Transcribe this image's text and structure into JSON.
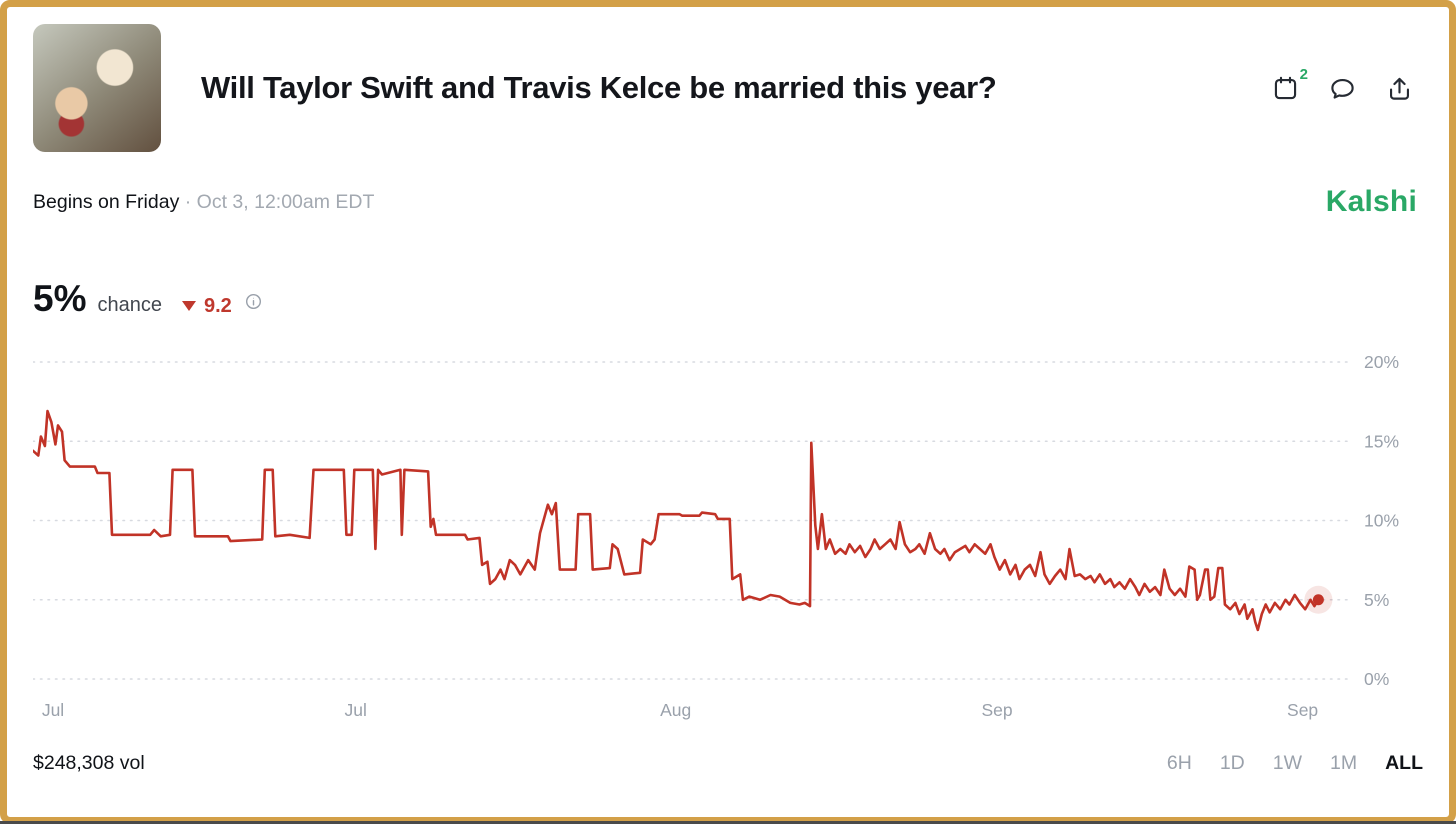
{
  "header": {
    "title": "Will Taylor Swift and Travis Kelce be married this year?",
    "calendar_badge": "2"
  },
  "subheader": {
    "begins_label": "Begins on Friday",
    "separator": "·",
    "start_time": "Oct 3, 12:00am EDT",
    "brand": "Kalshi"
  },
  "price": {
    "chance_value": "5%",
    "chance_label": "chance",
    "change_direction": "down",
    "change_value": "9.2"
  },
  "footer": {
    "volume": "$248,308 vol",
    "ranges": [
      {
        "label": "6H",
        "active": false
      },
      {
        "label": "1D",
        "active": false
      },
      {
        "label": "1W",
        "active": false
      },
      {
        "label": "1M",
        "active": false
      },
      {
        "label": "ALL",
        "active": true
      }
    ]
  },
  "colors": {
    "brand_green": "#2aa866",
    "line_red": "#c13327",
    "border_gold": "#d3a048",
    "tick_gray": "#9aa1ab",
    "grid_gray": "#d7dae0"
  },
  "chart_data": {
    "type": "line",
    "series_name": "chance",
    "color": "#c13327",
    "grid": "dotted-horizontal",
    "legend": "none",
    "ylim": [
      0,
      21
    ],
    "yticks": [
      0,
      5,
      10,
      15,
      20
    ],
    "ytick_labels": [
      "0%",
      "5%",
      "10%",
      "15%",
      "20%"
    ],
    "x_labels": [
      {
        "label": "Jul",
        "pos": 0.012
      },
      {
        "label": "Jul",
        "pos": 0.245
      },
      {
        "label": "Aug",
        "pos": 0.488
      },
      {
        "label": "Sep",
        "pos": 0.732
      },
      {
        "label": "Sep",
        "pos": 0.964
      }
    ],
    "end_marker": true,
    "points": [
      [
        0.0,
        14.4
      ],
      [
        0.004,
        14.1
      ],
      [
        0.006,
        15.3
      ],
      [
        0.009,
        14.7
      ],
      [
        0.011,
        16.9
      ],
      [
        0.014,
        16.2
      ],
      [
        0.017,
        14.8
      ],
      [
        0.019,
        16.0
      ],
      [
        0.022,
        15.6
      ],
      [
        0.024,
        13.8
      ],
      [
        0.028,
        13.4
      ],
      [
        0.047,
        13.4
      ],
      [
        0.049,
        13.0
      ],
      [
        0.058,
        13.0
      ],
      [
        0.06,
        9.1
      ],
      [
        0.089,
        9.1
      ],
      [
        0.092,
        9.4
      ],
      [
        0.097,
        9.0
      ],
      [
        0.104,
        9.1
      ],
      [
        0.106,
        13.2
      ],
      [
        0.121,
        13.2
      ],
      [
        0.123,
        9.0
      ],
      [
        0.148,
        9.0
      ],
      [
        0.15,
        8.7
      ],
      [
        0.174,
        8.8
      ],
      [
        0.176,
        13.2
      ],
      [
        0.182,
        13.2
      ],
      [
        0.184,
        9.0
      ],
      [
        0.195,
        9.1
      ],
      [
        0.21,
        8.9
      ],
      [
        0.213,
        13.2
      ],
      [
        0.236,
        13.2
      ],
      [
        0.238,
        9.1
      ],
      [
        0.242,
        9.1
      ],
      [
        0.244,
        13.2
      ],
      [
        0.258,
        13.2
      ],
      [
        0.26,
        8.2
      ],
      [
        0.262,
        13.2
      ],
      [
        0.265,
        12.9
      ],
      [
        0.279,
        13.2
      ],
      [
        0.28,
        9.1
      ],
      [
        0.282,
        13.2
      ],
      [
        0.3,
        13.1
      ],
      [
        0.302,
        9.6
      ],
      [
        0.304,
        10.1
      ],
      [
        0.306,
        9.1
      ],
      [
        0.328,
        9.1
      ],
      [
        0.33,
        8.8
      ],
      [
        0.339,
        8.9
      ],
      [
        0.341,
        7.2
      ],
      [
        0.345,
        7.4
      ],
      [
        0.347,
        6.0
      ],
      [
        0.351,
        6.3
      ],
      [
        0.355,
        6.9
      ],
      [
        0.358,
        6.3
      ],
      [
        0.362,
        7.5
      ],
      [
        0.366,
        7.2
      ],
      [
        0.37,
        6.6
      ],
      [
        0.376,
        7.5
      ],
      [
        0.381,
        6.9
      ],
      [
        0.385,
        9.2
      ],
      [
        0.391,
        11.0
      ],
      [
        0.394,
        10.4
      ],
      [
        0.397,
        11.1
      ],
      [
        0.4,
        6.9
      ],
      [
        0.412,
        6.9
      ],
      [
        0.414,
        10.4
      ],
      [
        0.423,
        10.4
      ],
      [
        0.425,
        6.9
      ],
      [
        0.438,
        7.0
      ],
      [
        0.44,
        8.5
      ],
      [
        0.444,
        8.2
      ],
      [
        0.449,
        6.6
      ],
      [
        0.461,
        6.7
      ],
      [
        0.463,
        8.8
      ],
      [
        0.469,
        8.5
      ],
      [
        0.472,
        8.8
      ],
      [
        0.475,
        10.4
      ],
      [
        0.491,
        10.4
      ],
      [
        0.493,
        10.3
      ],
      [
        0.506,
        10.3
      ],
      [
        0.508,
        10.5
      ],
      [
        0.518,
        10.4
      ],
      [
        0.52,
        10.1
      ],
      [
        0.529,
        10.1
      ],
      [
        0.531,
        6.3
      ],
      [
        0.537,
        6.6
      ],
      [
        0.539,
        5.0
      ],
      [
        0.544,
        5.2
      ],
      [
        0.552,
        5.0
      ],
      [
        0.56,
        5.3
      ],
      [
        0.567,
        5.2
      ],
      [
        0.575,
        4.8
      ],
      [
        0.582,
        4.7
      ],
      [
        0.586,
        4.8
      ],
      [
        0.59,
        4.6
      ],
      [
        0.591,
        14.9
      ],
      [
        0.594,
        9.7
      ],
      [
        0.596,
        8.2
      ],
      [
        0.599,
        10.4
      ],
      [
        0.602,
        8.2
      ],
      [
        0.605,
        8.8
      ],
      [
        0.609,
        7.9
      ],
      [
        0.613,
        8.2
      ],
      [
        0.617,
        7.9
      ],
      [
        0.62,
        8.5
      ],
      [
        0.624,
        8.0
      ],
      [
        0.628,
        8.4
      ],
      [
        0.632,
        7.7
      ],
      [
        0.636,
        8.2
      ],
      [
        0.639,
        8.8
      ],
      [
        0.643,
        8.2
      ],
      [
        0.647,
        8.5
      ],
      [
        0.651,
        8.8
      ],
      [
        0.655,
        8.2
      ],
      [
        0.658,
        9.9
      ],
      [
        0.662,
        8.5
      ],
      [
        0.666,
        8.0
      ],
      [
        0.67,
        8.2
      ],
      [
        0.673,
        8.5
      ],
      [
        0.677,
        7.9
      ],
      [
        0.681,
        9.2
      ],
      [
        0.685,
        8.2
      ],
      [
        0.689,
        7.9
      ],
      [
        0.692,
        8.2
      ],
      [
        0.696,
        7.5
      ],
      [
        0.7,
        8.0
      ],
      [
        0.704,
        8.2
      ],
      [
        0.708,
        8.4
      ],
      [
        0.711,
        8.0
      ],
      [
        0.715,
        8.5
      ],
      [
        0.719,
        8.2
      ],
      [
        0.723,
        7.9
      ],
      [
        0.727,
        8.5
      ],
      [
        0.73,
        7.7
      ],
      [
        0.734,
        6.9
      ],
      [
        0.738,
        7.5
      ],
      [
        0.742,
        6.6
      ],
      [
        0.746,
        7.2
      ],
      [
        0.749,
        6.3
      ],
      [
        0.753,
        6.9
      ],
      [
        0.757,
        7.2
      ],
      [
        0.761,
        6.5
      ],
      [
        0.765,
        8.0
      ],
      [
        0.768,
        6.6
      ],
      [
        0.772,
        6.0
      ],
      [
        0.776,
        6.5
      ],
      [
        0.78,
        6.9
      ],
      [
        0.784,
        6.3
      ],
      [
        0.787,
        8.2
      ],
      [
        0.791,
        6.5
      ],
      [
        0.795,
        6.6
      ],
      [
        0.799,
        6.3
      ],
      [
        0.803,
        6.5
      ],
      [
        0.806,
        6.1
      ],
      [
        0.81,
        6.6
      ],
      [
        0.814,
        6.0
      ],
      [
        0.818,
        6.3
      ],
      [
        0.821,
        5.8
      ],
      [
        0.825,
        6.1
      ],
      [
        0.829,
        5.7
      ],
      [
        0.833,
        6.3
      ],
      [
        0.837,
        5.8
      ],
      [
        0.84,
        5.3
      ],
      [
        0.844,
        6.0
      ],
      [
        0.848,
        5.5
      ],
      [
        0.852,
        5.8
      ],
      [
        0.856,
        5.3
      ],
      [
        0.859,
        6.9
      ],
      [
        0.863,
        5.7
      ],
      [
        0.867,
        5.3
      ],
      [
        0.871,
        5.7
      ],
      [
        0.875,
        5.2
      ],
      [
        0.878,
        7.1
      ],
      [
        0.882,
        6.9
      ],
      [
        0.884,
        5.0
      ],
      [
        0.886,
        5.3
      ],
      [
        0.89,
        6.9
      ],
      [
        0.892,
        6.9
      ],
      [
        0.894,
        5.0
      ],
      [
        0.897,
        5.2
      ],
      [
        0.9,
        7.0
      ],
      [
        0.903,
        7.0
      ],
      [
        0.905,
        4.7
      ],
      [
        0.909,
        4.4
      ],
      [
        0.913,
        4.8
      ],
      [
        0.916,
        4.1
      ],
      [
        0.92,
        4.7
      ],
      [
        0.922,
        3.8
      ],
      [
        0.926,
        4.4
      ],
      [
        0.928,
        3.6
      ],
      [
        0.93,
        3.1
      ],
      [
        0.933,
        4.1
      ],
      [
        0.936,
        4.7
      ],
      [
        0.939,
        4.2
      ],
      [
        0.943,
        4.8
      ],
      [
        0.947,
        4.4
      ],
      [
        0.951,
        5.0
      ],
      [
        0.954,
        4.7
      ],
      [
        0.958,
        5.3
      ],
      [
        0.962,
        4.8
      ],
      [
        0.966,
        4.4
      ],
      [
        0.97,
        5.0
      ],
      [
        0.973,
        4.6
      ],
      [
        0.976,
        5.0
      ]
    ]
  }
}
